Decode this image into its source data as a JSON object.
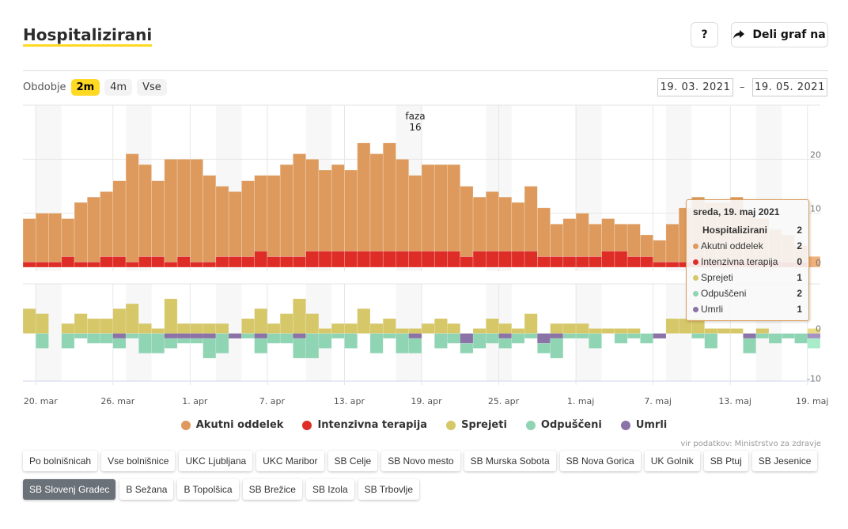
{
  "header": {
    "title": "Hospitalizirani",
    "help_label": "?",
    "share_label": "Deli graf na",
    "share_icon": "share-arrow-icon"
  },
  "period": {
    "label": "Obdobje",
    "options": [
      "2m",
      "4m",
      "Vse"
    ],
    "selected": "2m"
  },
  "date_range": {
    "from": "19. 03. 2021",
    "separator": "–",
    "to": "19. 05. 2021"
  },
  "colors": {
    "akutni": "#dd9a5c",
    "intenzivna": "#de2d26",
    "sprejeti": "#d6c768",
    "odpusceni": "#8fd4b3",
    "umrli": "#8b73a8",
    "accent": "#ffd922"
  },
  "chart_data": {
    "type": "bar",
    "stacked": true,
    "x_tick_labels": [
      "20. mar",
      "26. mar",
      "1. apr",
      "7. apr",
      "13. apr",
      "19. apr",
      "25. apr",
      "1. maj",
      "7. maj",
      "13. maj",
      "19. maj"
    ],
    "upper_y_ticks": [
      "0",
      "10",
      "20"
    ],
    "lower_y_ticks": [
      "0",
      "-10"
    ],
    "upper_ylim": [
      0,
      30
    ],
    "lower_ylim": [
      -10,
      10
    ],
    "annotation": {
      "line1": "faza",
      "line2": "16",
      "date": "2021-04-19"
    },
    "weekend_shading": true,
    "x": [
      "2021-03-19",
      "2021-03-20",
      "2021-03-21",
      "2021-03-22",
      "2021-03-23",
      "2021-03-24",
      "2021-03-25",
      "2021-03-26",
      "2021-03-27",
      "2021-03-28",
      "2021-03-29",
      "2021-03-30",
      "2021-03-31",
      "2021-04-01",
      "2021-04-02",
      "2021-04-03",
      "2021-04-04",
      "2021-04-05",
      "2021-04-06",
      "2021-04-07",
      "2021-04-08",
      "2021-04-09",
      "2021-04-10",
      "2021-04-11",
      "2021-04-12",
      "2021-04-13",
      "2021-04-14",
      "2021-04-15",
      "2021-04-16",
      "2021-04-17",
      "2021-04-18",
      "2021-04-19",
      "2021-04-20",
      "2021-04-21",
      "2021-04-22",
      "2021-04-23",
      "2021-04-24",
      "2021-04-25",
      "2021-04-26",
      "2021-04-27",
      "2021-04-28",
      "2021-04-29",
      "2021-04-30",
      "2021-05-01",
      "2021-05-02",
      "2021-05-03",
      "2021-05-04",
      "2021-05-05",
      "2021-05-06",
      "2021-05-07",
      "2021-05-08",
      "2021-05-09",
      "2021-05-10",
      "2021-05-11",
      "2021-05-12",
      "2021-05-13",
      "2021-05-14",
      "2021-05-15",
      "2021-05-16",
      "2021-05-17",
      "2021-05-18",
      "2021-05-19"
    ],
    "series": [
      {
        "name": "Akutni oddelek",
        "panel": "upper",
        "values": [
          8,
          9,
          9,
          7,
          11,
          12,
          12,
          14,
          20,
          17,
          14,
          19,
          18,
          19,
          16,
          13,
          12,
          14,
          14,
          15,
          17,
          19,
          17,
          15,
          16,
          15,
          20,
          18,
          20,
          17,
          14,
          16,
          16,
          16,
          13,
          10,
          11,
          10,
          9,
          12,
          9,
          6,
          7,
          8,
          6,
          6,
          5,
          6,
          4,
          4,
          7,
          10,
          12,
          11,
          11,
          12,
          9,
          8,
          6,
          5,
          3,
          2
        ]
      },
      {
        "name": "Intenzivna terapija",
        "panel": "upper",
        "values": [
          1,
          1,
          1,
          2,
          1,
          1,
          2,
          2,
          1,
          2,
          2,
          1,
          2,
          1,
          1,
          2,
          2,
          2,
          3,
          2,
          2,
          2,
          3,
          3,
          3,
          3,
          3,
          3,
          3,
          3,
          3,
          3,
          3,
          3,
          2,
          3,
          3,
          3,
          3,
          3,
          2,
          2,
          2,
          2,
          2,
          3,
          3,
          2,
          2,
          1,
          1,
          1,
          1,
          1,
          1,
          1,
          1,
          1,
          1,
          1,
          1,
          0
        ]
      },
      {
        "name": "Sprejeti",
        "panel": "lower",
        "values": [
          5,
          4,
          0,
          2,
          4,
          3,
          3,
          5,
          6,
          2,
          1,
          7,
          2,
          2,
          2,
          2,
          0,
          3,
          5,
          2,
          4,
          7,
          4,
          1,
          2,
          2,
          5,
          2,
          3,
          1,
          1,
          2,
          3,
          2,
          0,
          1,
          3,
          2,
          1,
          4,
          0,
          2,
          2,
          2,
          1,
          1,
          1,
          1,
          0,
          0,
          3,
          3,
          3,
          1,
          1,
          1,
          0,
          1,
          0,
          0,
          0,
          1
        ]
      },
      {
        "name": "Odpuščeni",
        "panel": "lower",
        "values": [
          0,
          -3,
          0,
          -3,
          -1,
          -2,
          -2,
          -2,
          -1,
          -4,
          -4,
          -2,
          -1,
          -1,
          -4,
          -4,
          0,
          -1,
          -3,
          -2,
          -2,
          -4,
          -5,
          -3,
          -1,
          -3,
          0,
          -4,
          -1,
          -4,
          -3,
          0,
          -3,
          -2,
          -2,
          -3,
          -2,
          -2,
          -2,
          -1,
          -2,
          -4,
          -1,
          -1,
          -3,
          0,
          -2,
          -1,
          -2,
          0,
          0,
          0,
          -1,
          -3,
          0,
          0,
          -3,
          -1,
          -2,
          -1,
          -2,
          -2
        ]
      },
      {
        "name": "Umrli",
        "panel": "lower",
        "values": [
          0,
          0,
          0,
          0,
          0,
          0,
          0,
          -1,
          0,
          0,
          0,
          -1,
          -1,
          -1,
          -1,
          0,
          -1,
          0,
          -1,
          0,
          0,
          -1,
          0,
          0,
          0,
          0,
          0,
          0,
          0,
          0,
          -1,
          0,
          0,
          0,
          -2,
          0,
          0,
          -1,
          0,
          0,
          -2,
          -1,
          0,
          0,
          0,
          0,
          0,
          0,
          0,
          -1,
          0,
          0,
          0,
          0,
          0,
          0,
          -1,
          0,
          0,
          0,
          0,
          -1
        ]
      }
    ],
    "legend": [
      "Akutni oddelek",
      "Intenzivna terapija",
      "Sprejeti",
      "Odpuščeni",
      "Umrli"
    ],
    "legend_placement": "bottom"
  },
  "tooltip": {
    "title": "sreda, 19. maj 2021",
    "total_label": "Hospitalizirani",
    "total_value": "2",
    "rows": [
      {
        "label": "Akutni oddelek",
        "value": "2"
      },
      {
        "label": "Intenzivna terapija",
        "value": "0"
      },
      {
        "label": "Sprejeti",
        "value": "1"
      },
      {
        "label": "Odpuščeni",
        "value": "2"
      },
      {
        "label": "Umrli",
        "value": "1"
      }
    ]
  },
  "source": "vir podatkov: Ministrstvo za zdravje",
  "hospitals": {
    "row1": [
      "Po bolnišnicah",
      "Vse bolnišnice",
      "UKC Ljubljana",
      "UKC Maribor",
      "SB Celje",
      "SB Novo mesto",
      "SB Murska Sobota",
      "SB Nova Gorica",
      "UK Golnik",
      "SB Ptuj",
      "SB Jesenice"
    ],
    "row2": [
      "SB Slovenj Gradec",
      "B Sežana",
      "B Topolšica",
      "SB Brežice",
      "SB Izola",
      "SB Trbovlje"
    ],
    "selected": "SB Slovenj Gradec"
  }
}
